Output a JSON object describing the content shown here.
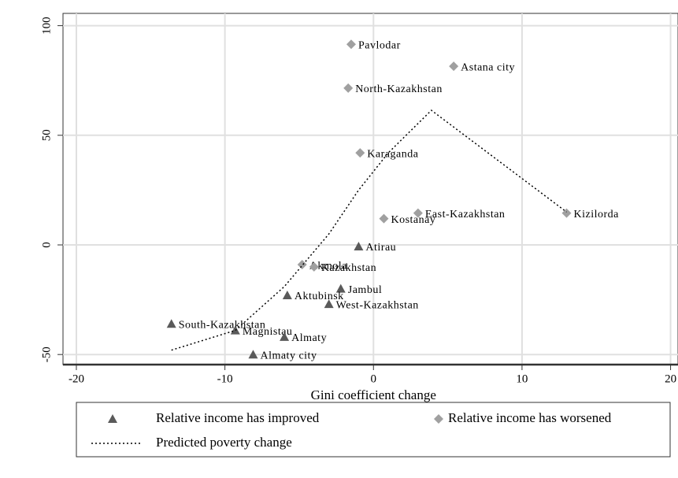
{
  "chart_data": {
    "type": "scatter",
    "xlabel": "Gini coefficient change",
    "xlim": [
      -20.9,
      20.5
    ],
    "ylim": [
      -54.6,
      105.6
    ],
    "xticks": [
      -20,
      -10,
      0,
      10,
      20
    ],
    "yticks": [
      -50,
      0,
      50,
      100
    ],
    "grid": true,
    "legend": "bottom",
    "series": [
      {
        "name": "Relative income has improved",
        "marker": "triangle",
        "color": "#5a5a5a",
        "x": [
          -1.0,
          -2.2,
          -5.8,
          -3.0,
          -13.6,
          -9.3,
          -6.0,
          -8.1
        ],
        "values": [
          -0.7,
          -20,
          -23,
          -27,
          -36,
          -39,
          -42,
          -50
        ],
        "labels": [
          "Atirau",
          "Jambul",
          "Aktubinsk",
          "West-Kazakhstan",
          "South-Kazakhstan",
          "Magnistau",
          "Almaty",
          "Almaty city"
        ]
      },
      {
        "name": "Relative income has worsened",
        "marker": "diamond",
        "color": "#a0a0a0",
        "x": [
          -1.5,
          5.4,
          -1.7,
          -0.9,
          3.0,
          13.0,
          0.7,
          -4.8,
          -4.0
        ],
        "values": [
          91.5,
          81.5,
          71.5,
          42,
          14.5,
          14.5,
          12,
          -9,
          -10
        ],
        "labels": [
          "Pavlodar",
          "Astana city",
          "North-Kazakhstan",
          "Karaganda",
          "East-Kazakhstan",
          "Kizilorda",
          "Kostanay",
          "Akmola",
          "Kazakhstan"
        ]
      },
      {
        "name": "Predicted poverty change",
        "marker": "line",
        "color": "#000000",
        "x": [
          -13.6,
          -9.3,
          -6.0,
          -3.0,
          -1.0,
          1.0,
          3.9,
          13.0
        ],
        "values": [
          -48,
          -39,
          -19,
          5,
          25,
          42,
          61.4,
          15
        ]
      }
    ]
  }
}
